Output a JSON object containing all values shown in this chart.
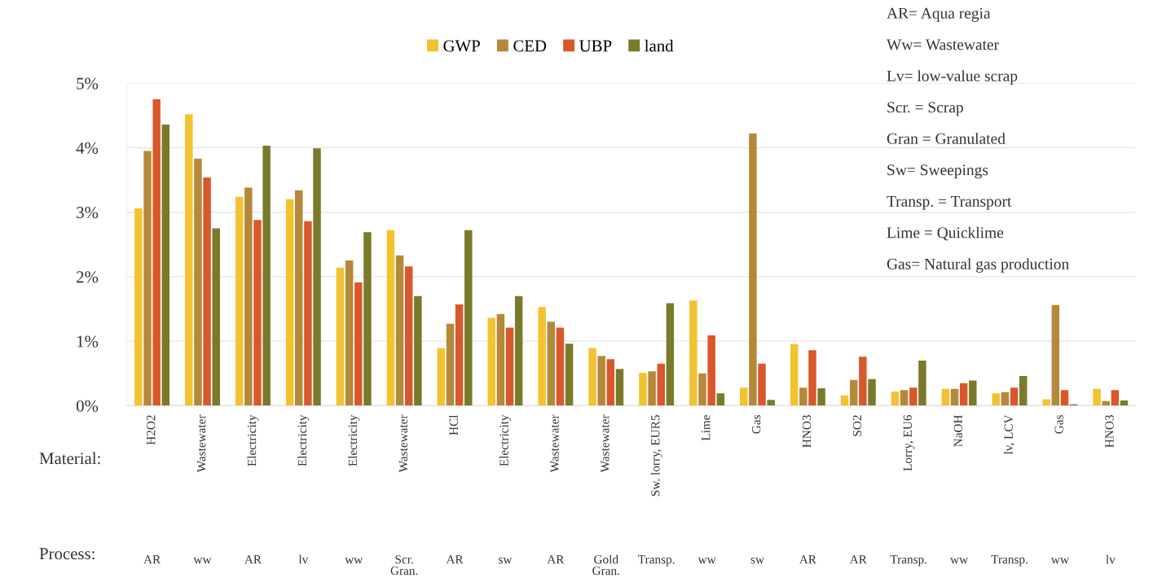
{
  "chart_data": {
    "type": "bar",
    "categories": [
      "H2O2",
      "Wastewater",
      "Electricity",
      "Electricity",
      "Electricity",
      "Wastewater",
      "HCl",
      "Electricity",
      "Wastewater",
      "Wastewater",
      "Sw. lorry, EUR5",
      "Lime",
      "Gas",
      "HNO3",
      "SO2",
      "Lorry, EU6",
      "NaOH",
      "lv, LCV",
      "Gas",
      "HNO3"
    ],
    "series": [
      {
        "name": "GWP",
        "color": "#f2c230",
        "values": [
          3.06,
          4.52,
          3.24,
          3.2,
          2.14,
          2.72,
          0.89,
          1.36,
          1.53,
          0.89,
          0.51,
          1.63,
          0.28,
          0.95,
          0.16,
          0.22,
          0.26,
          0.19,
          0.1,
          0.26
        ]
      },
      {
        "name": "CED",
        "color": "#b5883a",
        "values": [
          3.95,
          3.83,
          3.38,
          3.34,
          2.25,
          2.33,
          1.27,
          1.42,
          1.3,
          0.77,
          0.53,
          0.5,
          4.22,
          0.28,
          0.4,
          0.24,
          0.26,
          0.21,
          1.56,
          0.07
        ]
      },
      {
        "name": "UBP",
        "color": "#d9582b",
        "values": [
          4.75,
          3.54,
          2.88,
          2.86,
          1.91,
          2.16,
          1.57,
          1.21,
          1.21,
          0.72,
          0.65,
          1.09,
          0.65,
          0.86,
          0.76,
          0.28,
          0.35,
          0.28,
          0.24,
          0.24
        ]
      },
      {
        "name": "land",
        "color": "#7a7a2a",
        "values": [
          4.36,
          2.75,
          4.03,
          3.99,
          2.69,
          1.7,
          2.72,
          1.7,
          0.96,
          0.57,
          1.59,
          0.19,
          0.09,
          0.27,
          0.41,
          0.7,
          0.39,
          0.46,
          0.02,
          0.08
        ]
      }
    ],
    "ylim": [
      0,
      5
    ],
    "yticks": [
      {
        "value": 0,
        "label": "0%"
      },
      {
        "value": 1,
        "label": "1%"
      },
      {
        "value": 2,
        "label": "2%"
      },
      {
        "value": 3,
        "label": "3%"
      },
      {
        "value": 4,
        "label": "4%"
      },
      {
        "value": 5,
        "label": "5%"
      }
    ],
    "grid": "y",
    "legend": "top",
    "annotations": [
      "AR",
      "ww",
      "AR",
      "lv",
      "ww",
      "Scr.\nGran.",
      "AR",
      "sw",
      "AR",
      "Gold\nGran.",
      "Transp.",
      "ww",
      "sw",
      "AR",
      "AR",
      "Transp.",
      "ww",
      "Transp.",
      "ww",
      "lv",
      "Material:",
      "Process:",
      "AR= Aqua regia",
      "Ww= Wastewater",
      "Lv= low-value scrap",
      "Scr. = Scrap",
      "Gran = Granulated",
      "Sw= Sweepings",
      "Transp. = Transport",
      "Lime = Quicklime",
      "Gas= Natural gas production"
    ]
  }
}
